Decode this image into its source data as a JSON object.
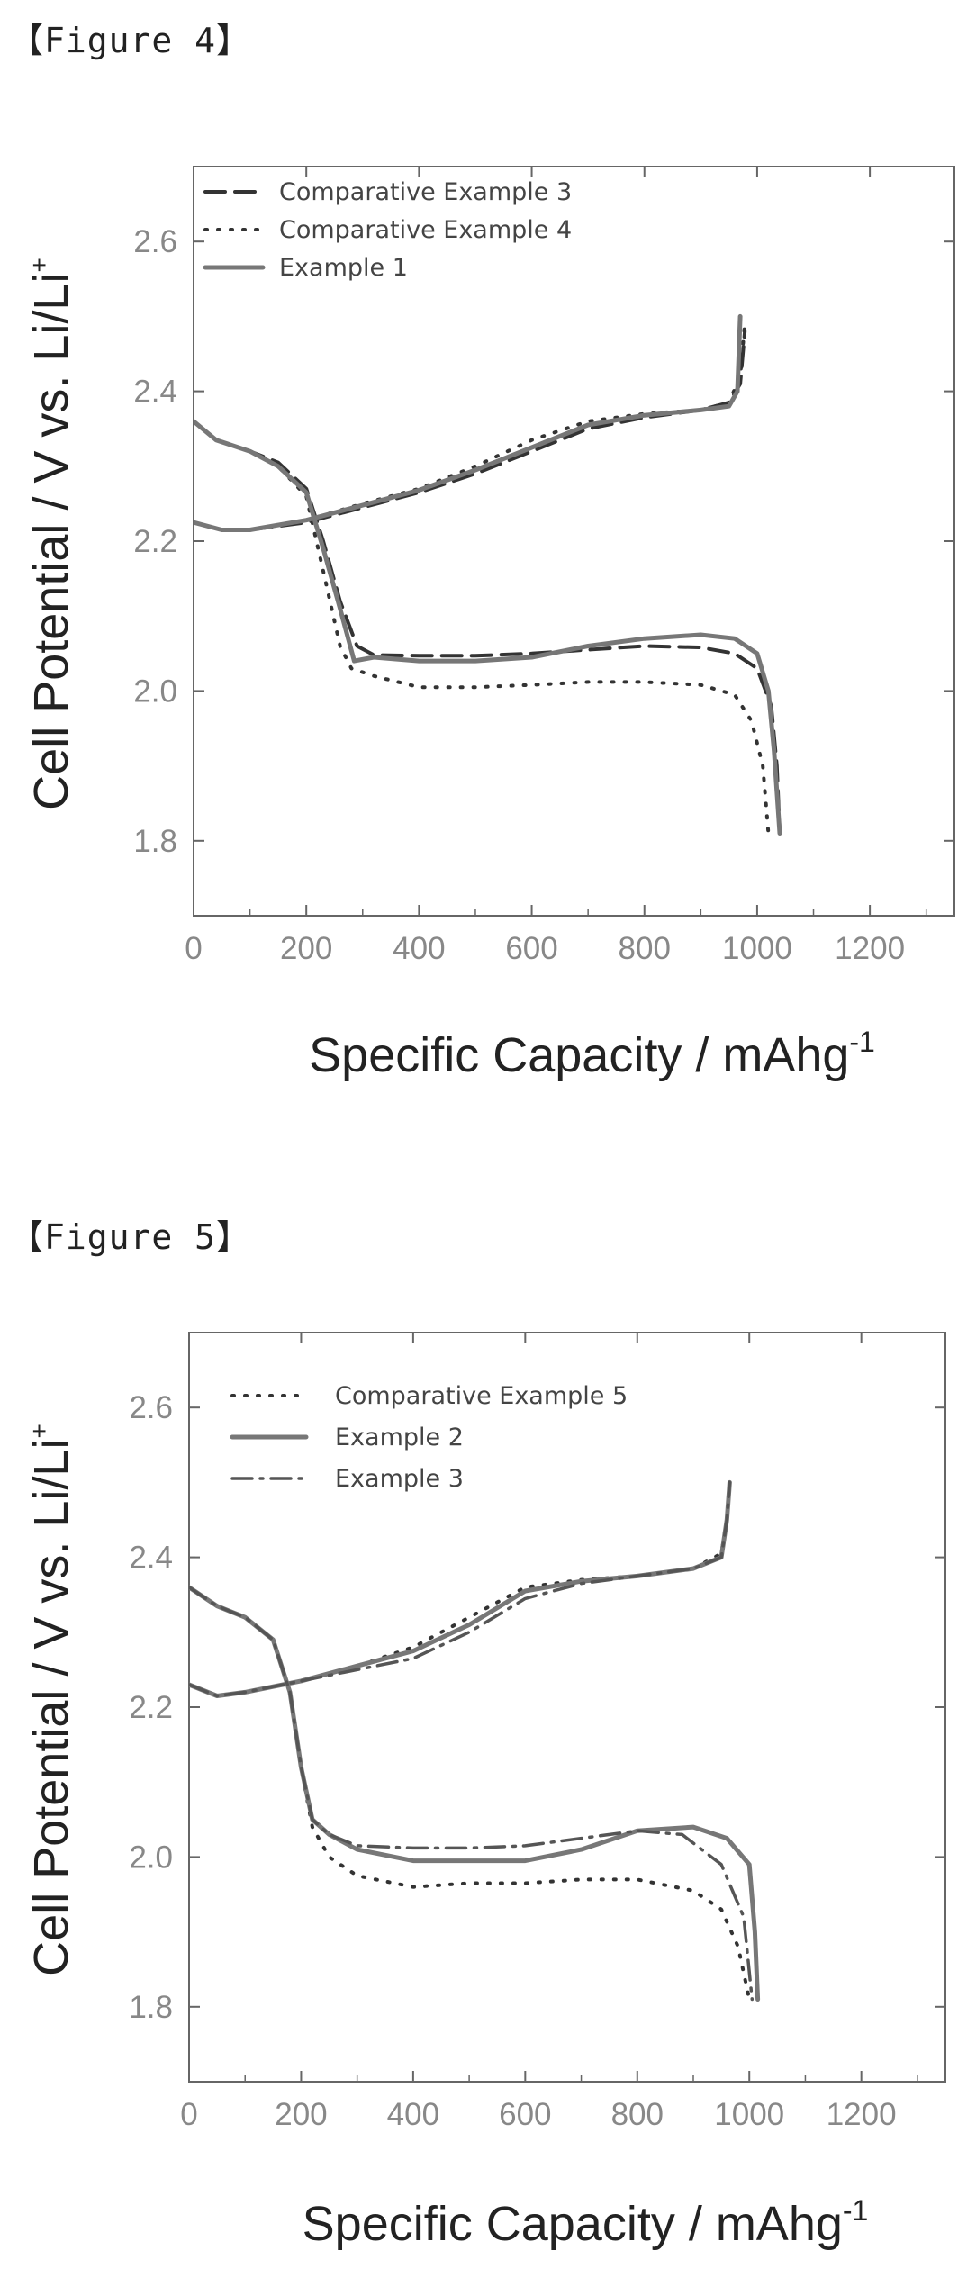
{
  "figures": [
    {
      "heading": "【Figure 4】"
    },
    {
      "heading": "【Figure 5】"
    }
  ],
  "chart_data": [
    {
      "type": "line",
      "title": "",
      "xlabel": "Specific Capacity / mAhg",
      "xlabel_sup": "-1",
      "ylabel": "Cell Potential / V vs. Li/Li",
      "ylabel_sup": "+",
      "xlim": [
        0,
        1350
      ],
      "ylim": [
        1.7,
        2.7
      ],
      "xticks": [
        0,
        200,
        400,
        600,
        800,
        1000,
        1200
      ],
      "yticks": [
        1.8,
        2.0,
        2.2,
        2.4,
        2.6
      ],
      "xtick_labels": [
        "0",
        "200",
        "400",
        "600",
        "800",
        "1000",
        "1200"
      ],
      "ytick_labels": [
        "1.8",
        "2.0",
        "2.2",
        "2.4",
        "2.6"
      ],
      "legend": "top-left",
      "grid": false,
      "series": [
        {
          "name": "Comparative Example 3",
          "style": "dashed",
          "color": "#333333",
          "discharge": [
            [
              0,
              2.36
            ],
            [
              40,
              2.335
            ],
            [
              100,
              2.32
            ],
            [
              150,
              2.305
            ],
            [
              200,
              2.27
            ],
            [
              230,
              2.2
            ],
            [
              260,
              2.12
            ],
            [
              290,
              2.06
            ],
            [
              320,
              2.048
            ],
            [
              400,
              2.047
            ],
            [
              500,
              2.047
            ],
            [
              600,
              2.05
            ],
            [
              700,
              2.055
            ],
            [
              800,
              2.06
            ],
            [
              900,
              2.058
            ],
            [
              960,
              2.05
            ],
            [
              1000,
              2.03
            ],
            [
              1025,
              1.98
            ],
            [
              1035,
              1.9
            ],
            [
              1040,
              1.81
            ]
          ],
          "charge": [
            [
              0,
              2.225
            ],
            [
              50,
              2.215
            ],
            [
              100,
              2.215
            ],
            [
              200,
              2.225
            ],
            [
              300,
              2.245
            ],
            [
              400,
              2.265
            ],
            [
              500,
              2.29
            ],
            [
              600,
              2.32
            ],
            [
              700,
              2.35
            ],
            [
              800,
              2.365
            ],
            [
              900,
              2.375
            ],
            [
              950,
              2.385
            ],
            [
              970,
              2.41
            ],
            [
              978,
              2.48
            ]
          ]
        },
        {
          "name": "Comparative Example 4",
          "style": "dotted",
          "color": "#333333",
          "discharge": [
            [
              0,
              2.36
            ],
            [
              40,
              2.335
            ],
            [
              100,
              2.32
            ],
            [
              150,
              2.3
            ],
            [
              200,
              2.26
            ],
            [
              230,
              2.16
            ],
            [
              260,
              2.06
            ],
            [
              280,
              2.03
            ],
            [
              320,
              2.02
            ],
            [
              400,
              2.005
            ],
            [
              500,
              2.005
            ],
            [
              600,
              2.008
            ],
            [
              700,
              2.012
            ],
            [
              800,
              2.012
            ],
            [
              900,
              2.008
            ],
            [
              960,
              1.995
            ],
            [
              990,
              1.96
            ],
            [
              1010,
              1.9
            ],
            [
              1020,
              1.81
            ]
          ],
          "charge": [
            [
              0,
              2.225
            ],
            [
              50,
              2.215
            ],
            [
              100,
              2.215
            ],
            [
              200,
              2.228
            ],
            [
              300,
              2.25
            ],
            [
              400,
              2.27
            ],
            [
              500,
              2.3
            ],
            [
              600,
              2.335
            ],
            [
              700,
              2.36
            ],
            [
              800,
              2.37
            ],
            [
              900,
              2.375
            ],
            [
              950,
              2.385
            ],
            [
              970,
              2.42
            ],
            [
              978,
              2.49
            ]
          ]
        },
        {
          "name": "Example 1",
          "style": "solid",
          "color": "#777777",
          "discharge": [
            [
              0,
              2.36
            ],
            [
              40,
              2.335
            ],
            [
              100,
              2.32
            ],
            [
              150,
              2.3
            ],
            [
              200,
              2.265
            ],
            [
              230,
              2.19
            ],
            [
              260,
              2.11
            ],
            [
              285,
              2.04
            ],
            [
              320,
              2.045
            ],
            [
              400,
              2.04
            ],
            [
              500,
              2.04
            ],
            [
              600,
              2.045
            ],
            [
              700,
              2.06
            ],
            [
              800,
              2.07
            ],
            [
              900,
              2.075
            ],
            [
              960,
              2.07
            ],
            [
              1000,
              2.05
            ],
            [
              1020,
              2.0
            ],
            [
              1030,
              1.92
            ],
            [
              1040,
              1.81
            ]
          ],
          "charge": [
            [
              0,
              2.225
            ],
            [
              50,
              2.215
            ],
            [
              100,
              2.215
            ],
            [
              200,
              2.228
            ],
            [
              300,
              2.248
            ],
            [
              400,
              2.268
            ],
            [
              500,
              2.295
            ],
            [
              600,
              2.325
            ],
            [
              700,
              2.355
            ],
            [
              800,
              2.368
            ],
            [
              900,
              2.375
            ],
            [
              950,
              2.38
            ],
            [
              965,
              2.4
            ],
            [
              970,
              2.5
            ]
          ]
        }
      ]
    },
    {
      "type": "line",
      "title": "",
      "xlabel": "Specific Capacity / mAhg",
      "xlabel_sup": "-1",
      "ylabel": "Cell Potential / V vs. Li/Li",
      "ylabel_sup": "+",
      "xlim": [
        0,
        1350
      ],
      "ylim": [
        1.7,
        2.7
      ],
      "xticks": [
        0,
        200,
        400,
        600,
        800,
        1000,
        1200
      ],
      "yticks": [
        1.8,
        2.0,
        2.2,
        2.4,
        2.6
      ],
      "xtick_labels": [
        "0",
        "200",
        "400",
        "600",
        "800",
        "1000",
        "1200"
      ],
      "ytick_labels": [
        "1.8",
        "2.0",
        "2.2",
        "2.4",
        "2.6"
      ],
      "legend": "top-left",
      "grid": false,
      "series": [
        {
          "name": "Comparative Example 5",
          "style": "dotted",
          "color": "#333333",
          "discharge": [
            [
              0,
              2.36
            ],
            [
              50,
              2.335
            ],
            [
              100,
              2.32
            ],
            [
              150,
              2.29
            ],
            [
              180,
              2.22
            ],
            [
              200,
              2.12
            ],
            [
              220,
              2.04
            ],
            [
              250,
              2.0
            ],
            [
              300,
              1.975
            ],
            [
              400,
              1.96
            ],
            [
              500,
              1.965
            ],
            [
              600,
              1.965
            ],
            [
              700,
              1.97
            ],
            [
              800,
              1.97
            ],
            [
              900,
              1.955
            ],
            [
              950,
              1.93
            ],
            [
              980,
              1.88
            ],
            [
              1000,
              1.81
            ]
          ],
          "charge": [
            [
              0,
              2.23
            ],
            [
              50,
              2.215
            ],
            [
              100,
              2.22
            ],
            [
              200,
              2.235
            ],
            [
              300,
              2.255
            ],
            [
              400,
              2.28
            ],
            [
              500,
              2.32
            ],
            [
              600,
              2.36
            ],
            [
              700,
              2.37
            ],
            [
              800,
              2.375
            ],
            [
              900,
              2.385
            ],
            [
              950,
              2.405
            ],
            [
              960,
              2.45
            ],
            [
              965,
              2.5
            ]
          ]
        },
        {
          "name": "Example 2",
          "style": "solid",
          "color": "#777777",
          "discharge": [
            [
              0,
              2.36
            ],
            [
              50,
              2.335
            ],
            [
              100,
              2.32
            ],
            [
              150,
              2.29
            ],
            [
              180,
              2.22
            ],
            [
              200,
              2.12
            ],
            [
              220,
              2.05
            ],
            [
              250,
              2.03
            ],
            [
              300,
              2.01
            ],
            [
              400,
              1.995
            ],
            [
              500,
              1.995
            ],
            [
              600,
              1.995
            ],
            [
              700,
              2.01
            ],
            [
              800,
              2.035
            ],
            [
              900,
              2.04
            ],
            [
              960,
              2.025
            ],
            [
              1000,
              1.99
            ],
            [
              1010,
              1.9
            ],
            [
              1015,
              1.81
            ]
          ],
          "charge": [
            [
              0,
              2.23
            ],
            [
              50,
              2.215
            ],
            [
              100,
              2.22
            ],
            [
              200,
              2.235
            ],
            [
              300,
              2.255
            ],
            [
              400,
              2.275
            ],
            [
              500,
              2.31
            ],
            [
              600,
              2.355
            ],
            [
              700,
              2.368
            ],
            [
              800,
              2.375
            ],
            [
              900,
              2.385
            ],
            [
              950,
              2.4
            ],
            [
              960,
              2.45
            ],
            [
              965,
              2.5
            ]
          ]
        },
        {
          "name": "Example 3",
          "style": "dashdot",
          "color": "#555555",
          "discharge": [
            [
              0,
              2.36
            ],
            [
              50,
              2.335
            ],
            [
              100,
              2.32
            ],
            [
              150,
              2.29
            ],
            [
              180,
              2.22
            ],
            [
              200,
              2.12
            ],
            [
              220,
              2.05
            ],
            [
              250,
              2.03
            ],
            [
              300,
              2.015
            ],
            [
              400,
              2.012
            ],
            [
              500,
              2.012
            ],
            [
              600,
              2.015
            ],
            [
              700,
              2.025
            ],
            [
              800,
              2.035
            ],
            [
              880,
              2.03
            ],
            [
              950,
              1.99
            ],
            [
              990,
              1.92
            ],
            [
              1005,
              1.81
            ]
          ],
          "charge": [
            [
              0,
              2.23
            ],
            [
              50,
              2.215
            ],
            [
              100,
              2.22
            ],
            [
              200,
              2.235
            ],
            [
              300,
              2.25
            ],
            [
              400,
              2.265
            ],
            [
              500,
              2.3
            ],
            [
              600,
              2.345
            ],
            [
              700,
              2.365
            ],
            [
              800,
              2.375
            ],
            [
              900,
              2.385
            ],
            [
              950,
              2.4
            ],
            [
              960,
              2.45
            ],
            [
              965,
              2.5
            ]
          ]
        }
      ]
    }
  ]
}
